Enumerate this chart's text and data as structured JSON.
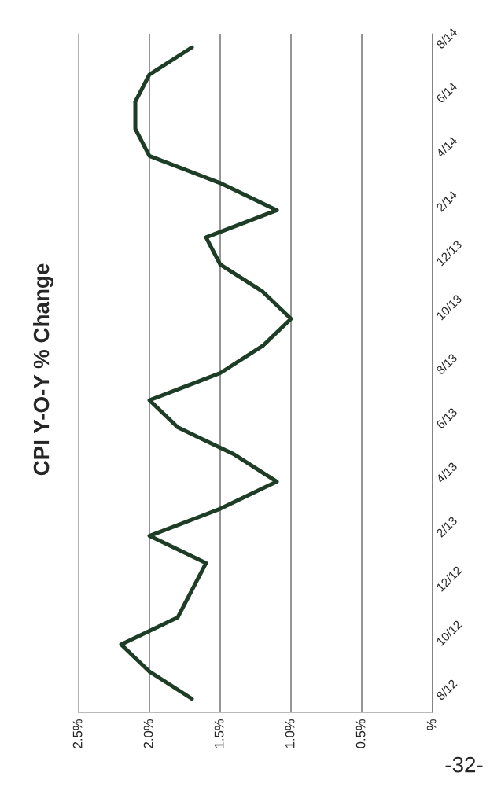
{
  "chart_data": {
    "type": "line",
    "title": "CPI Y-O-Y % Change",
    "orientation": "horizontal",
    "categories": [
      "8/14",
      null,
      "6/14",
      null,
      "4/14",
      null,
      "2/14",
      null,
      "12/13",
      null,
      "10/13",
      null,
      "8/13",
      null,
      "6/13",
      null,
      "4/13",
      null,
      "2/13",
      null,
      "12/12",
      null,
      "10/12",
      null,
      "8/12"
    ],
    "series": [
      {
        "color": "#1e3d26",
        "values": [
          1.7,
          2.0,
          2.1,
          2.1,
          2.0,
          1.5,
          1.1,
          1.6,
          1.5,
          1.2,
          1.0,
          1.2,
          1.5,
          2.0,
          1.8,
          1.4,
          1.1,
          1.5,
          2.0,
          1.6,
          1.7,
          1.8,
          2.2,
          2.0,
          1.7
        ]
      }
    ],
    "xlim": [
      2.5,
      0
    ],
    "xticks": [
      {
        "value": 2.5,
        "label": "2.5%"
      },
      {
        "value": 2.0,
        "label": "2.0%"
      },
      {
        "value": 1.5,
        "label": "1.5%"
      },
      {
        "value": 1.0,
        "label": "1.0%"
      },
      {
        "value": 0.5,
        "label": "0.5%"
      },
      {
        "value": 0,
        "label": "%"
      }
    ],
    "grid": "x",
    "legend": false,
    "marker": "none",
    "line_style": "solid",
    "annotations": [
      "-32-"
    ]
  }
}
